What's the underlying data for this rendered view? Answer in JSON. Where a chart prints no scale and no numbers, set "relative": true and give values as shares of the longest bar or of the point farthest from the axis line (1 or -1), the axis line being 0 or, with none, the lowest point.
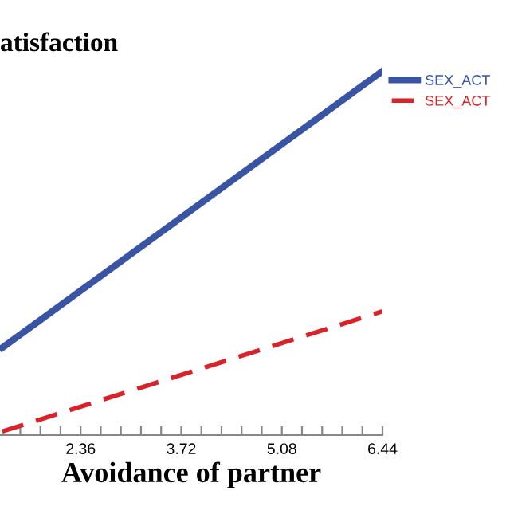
{
  "chart_data": {
    "type": "line",
    "title": "atisfaction",
    "xlabel": "Avoidance of partner",
    "relative": true,
    "xlim": [
      1.27,
      6.44
    ],
    "xticks": [
      {
        "value": 1.544,
        "label": null
      },
      {
        "value": 1.816,
        "label": null
      },
      {
        "value": 2.088,
        "label": null
      },
      2.36,
      {
        "value": 2.632,
        "label": null
      },
      {
        "value": 2.904,
        "label": null
      },
      {
        "value": 3.176,
        "label": null
      },
      {
        "value": 3.448,
        "label": null
      },
      3.72,
      {
        "value": 3.992,
        "label": null
      },
      {
        "value": 4.264,
        "label": null
      },
      {
        "value": 4.536,
        "label": null
      },
      {
        "value": 4.808,
        "label": null
      },
      5.08,
      {
        "value": 5.352,
        "label": null
      },
      {
        "value": 5.624,
        "label": null
      },
      {
        "value": 5.896,
        "label": null
      },
      {
        "value": 6.168,
        "label": null
      },
      6.44
    ],
    "legend": "top right",
    "grid": false,
    "x": [
      1.3,
      6.44
    ],
    "series": [
      {
        "name": "SEX_ACT",
        "color": "#3a54a4",
        "values": [
          0.24,
          1
        ],
        "line_style": "solid"
      },
      {
        "name": "SEX_ACT",
        "color": "#d8232a",
        "values": [
          0.01,
          0.34
        ],
        "line_style": "dashed"
      }
    ]
  }
}
